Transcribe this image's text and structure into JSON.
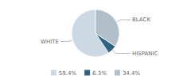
{
  "chart_data": {
    "type": "pie",
    "categories": [
      "WHITE",
      "HISPANIC",
      "BLACK"
    ],
    "values": [
      59.4,
      6.3,
      34.4
    ],
    "value_labels": [
      "59.4%",
      "6.3%",
      "34.4%"
    ],
    "colors": [
      "#ccd8e4",
      "#2e6382",
      "#b0bfc9"
    ],
    "legend": "bottom"
  }
}
